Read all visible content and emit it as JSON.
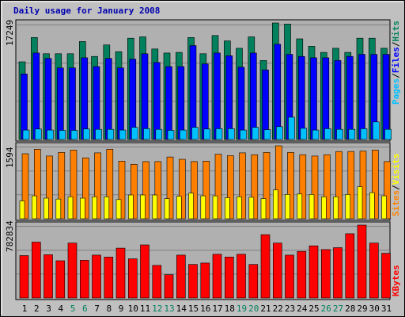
{
  "title": "Daily usage for January 2008",
  "colors": {
    "background": "#c0c0c0",
    "plot_bg": "#b0b0b0",
    "title": "#0000b0",
    "hits": "#00805c",
    "files": "#0000ff",
    "pages": "#00c0ff",
    "visits": "#ffff00",
    "sites": "#ff8000",
    "kbytes": "#ff0000",
    "weekend_label": "#00805c",
    "weekday_label": "#000000"
  },
  "chart_data": [
    {
      "type": "bar",
      "panel": "hits-files-pages",
      "axis_label_max": "17249",
      "legend": [
        "Pages",
        "/",
        "Files",
        "/",
        "Hits"
      ],
      "categories": [
        "1",
        "2",
        "3",
        "4",
        "5",
        "6",
        "7",
        "8",
        "9",
        "10",
        "11",
        "12",
        "13",
        "14",
        "15",
        "16",
        "17",
        "18",
        "19",
        "20",
        "21",
        "22",
        "23",
        "24",
        "25",
        "26",
        "27",
        "28",
        "29",
        "30",
        "31"
      ],
      "ymax": 17249,
      "series": [
        {
          "name": "Hits",
          "values": [
            11500,
            15100,
            12700,
            12700,
            12700,
            14500,
            12300,
            14000,
            13000,
            15000,
            15200,
            13400,
            12800,
            12900,
            15100,
            12700,
            15400,
            14600,
            13500,
            15200,
            11700,
            17249,
            17100,
            14900,
            13800,
            12900,
            13500,
            12900,
            15000,
            15000,
            13500
          ]
        },
        {
          "name": "Files",
          "values": [
            9700,
            12800,
            12000,
            10600,
            10600,
            12100,
            10800,
            12000,
            10600,
            11900,
            12700,
            11400,
            10800,
            10800,
            13900,
            11200,
            12800,
            12400,
            10700,
            12800,
            10300,
            14100,
            12600,
            12300,
            12100,
            12100,
            11700,
            12300,
            12600,
            12600,
            12600
          ]
        },
        {
          "name": "Pages",
          "values": [
            1400,
            1550,
            1400,
            1350,
            1350,
            1550,
            1500,
            1500,
            1400,
            1800,
            1600,
            1500,
            1350,
            1400,
            1800,
            1550,
            1600,
            1600,
            1400,
            1800,
            1450,
            1900,
            3300,
            1650,
            1400,
            1600,
            1500,
            1500,
            1600,
            2600,
            1500
          ]
        }
      ]
    },
    {
      "type": "bar",
      "panel": "visits-sites",
      "axis_label_max": "1594",
      "legend": [
        "Sites",
        "/",
        "Visits"
      ],
      "categories": [
        "1",
        "2",
        "3",
        "4",
        "5",
        "6",
        "7",
        "8",
        "9",
        "10",
        "11",
        "12",
        "13",
        "14",
        "15",
        "16",
        "17",
        "18",
        "19",
        "20",
        "21",
        "22",
        "23",
        "24",
        "25",
        "26",
        "27",
        "28",
        "29",
        "30",
        "31"
      ],
      "ymax": 1594,
      "series": [
        {
          "name": "Visits",
          "values": [
            390,
            500,
            450,
            430,
            480,
            450,
            480,
            480,
            420,
            520,
            520,
            520,
            440,
            490,
            560,
            500,
            500,
            460,
            480,
            470,
            440,
            630,
            530,
            540,
            530,
            480,
            480,
            530,
            700,
            570,
            500
          ]
        },
        {
          "name": "Sites",
          "values": [
            1420,
            1520,
            1370,
            1450,
            1500,
            1330,
            1440,
            1520,
            1260,
            1190,
            1250,
            1250,
            1350,
            1300,
            1250,
            1260,
            1410,
            1380,
            1440,
            1400,
            1450,
            1594,
            1450,
            1400,
            1370,
            1400,
            1470,
            1470,
            1480,
            1500,
            1250
          ]
        }
      ]
    },
    {
      "type": "bar",
      "panel": "kbytes",
      "axis_label_max": "782834",
      "legend": [
        "KBytes"
      ],
      "categories": [
        "1",
        "2",
        "3",
        "4",
        "5",
        "6",
        "7",
        "8",
        "9",
        "10",
        "11",
        "12",
        "13",
        "14",
        "15",
        "16",
        "17",
        "18",
        "19",
        "20",
        "21",
        "22",
        "23",
        "24",
        "25",
        "26",
        "27",
        "28",
        "29",
        "30",
        "31"
      ],
      "ymax": 782834,
      "series": [
        {
          "name": "KBytes",
          "values": [
            455000,
            600000,
            465000,
            400000,
            590000,
            405000,
            460000,
            440000,
            535000,
            420000,
            570000,
            350000,
            250000,
            460000,
            360000,
            375000,
            470000,
            440000,
            470000,
            360000,
            680000,
            590000,
            460000,
            500000,
            560000,
            520000,
            540000,
            690000,
            782834,
            590000,
            480000
          ]
        }
      ]
    }
  ],
  "x_axis": {
    "labels": [
      "1",
      "2",
      "3",
      "4",
      "5",
      "6",
      "7",
      "8",
      "9",
      "10",
      "11",
      "12",
      "13",
      "14",
      "15",
      "16",
      "17",
      "18",
      "19",
      "20",
      "21",
      "22",
      "23",
      "24",
      "25",
      "26",
      "27",
      "28",
      "29",
      "30",
      "31"
    ],
    "weekend_days": [
      "5",
      "6",
      "12",
      "13",
      "19",
      "20",
      "26",
      "27"
    ]
  }
}
